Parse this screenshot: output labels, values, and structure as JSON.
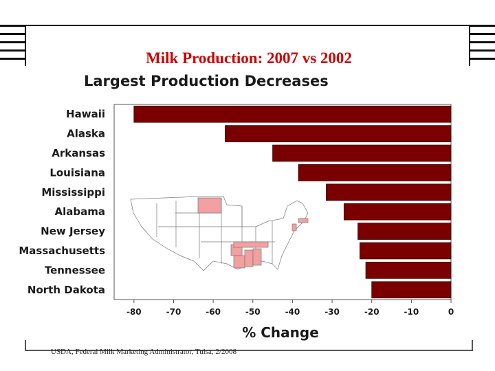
{
  "slide": {
    "title": "Milk Production: 2007 vs 2002",
    "source": "USDA, Federal Milk Marketing Administrator, Tulsa, 2/2008"
  },
  "chart_data": {
    "type": "bar",
    "orientation": "horizontal",
    "title": "Largest Production Decreases",
    "xlabel": "% Change",
    "ylabel": "",
    "categories": [
      "Hawaii",
      "Alaska",
      "Arkansas",
      "Louisiana",
      "Mississippi",
      "Alabama",
      "New Jersey",
      "Massachusetts",
      "Tennessee",
      "North Dakota"
    ],
    "values": [
      -80,
      -57,
      -45,
      -38.5,
      -31.5,
      -27,
      -23.5,
      -23,
      -21.5,
      -20
    ],
    "xlim": [
      -85,
      0
    ],
    "xticks": [
      -80,
      -70,
      -60,
      -50,
      -40,
      -30,
      -20,
      -10,
      0
    ],
    "bar_color": "#7a0000",
    "map_highlight_color": "#f2a0a0",
    "grid": false
  }
}
